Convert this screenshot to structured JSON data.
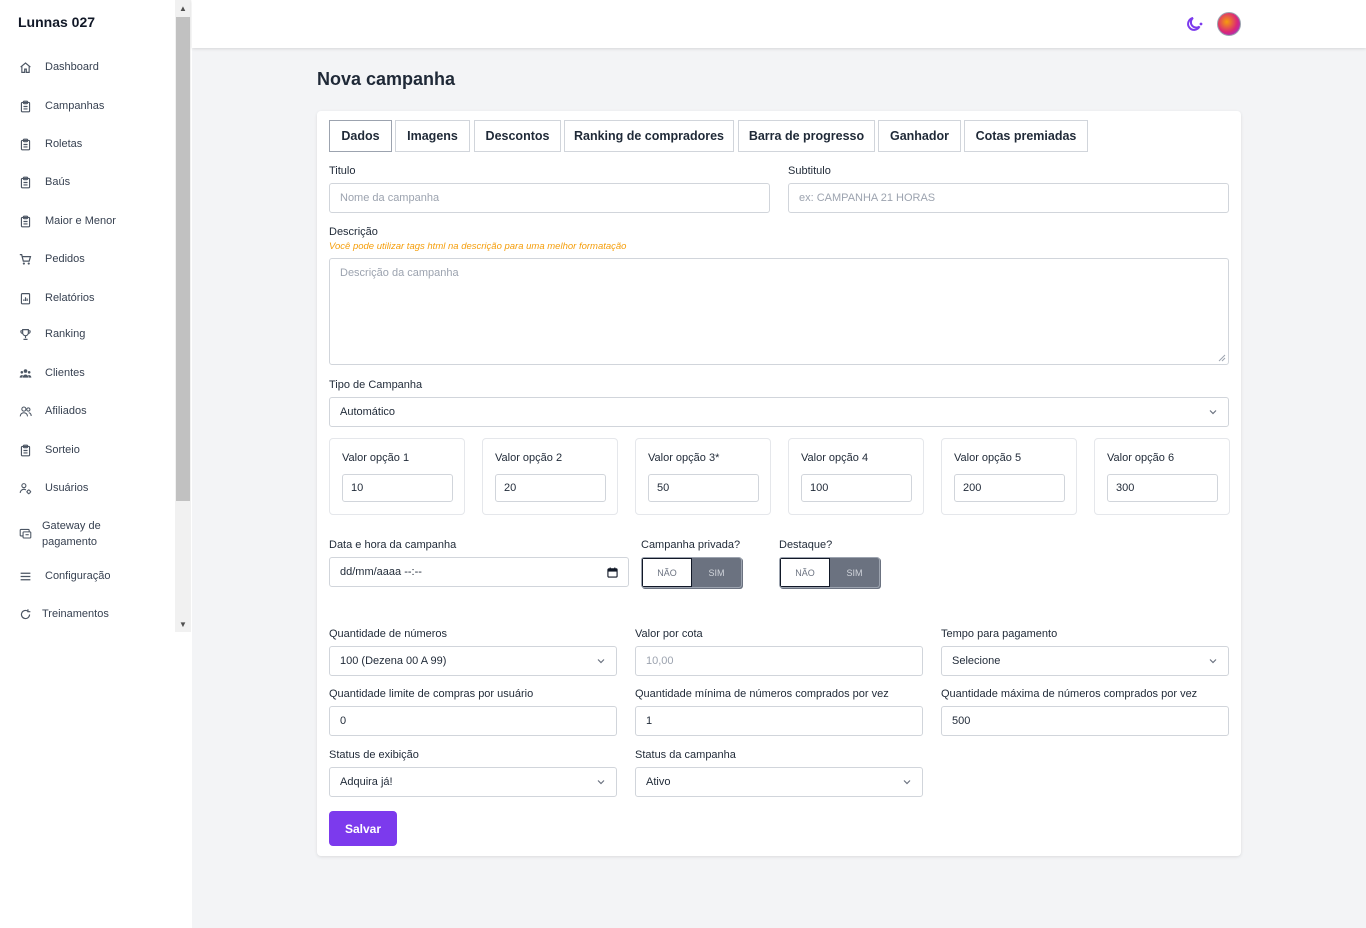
{
  "sidebar": {
    "brand": "Lunnas 027",
    "items": [
      {
        "label": "Dashboard",
        "icon": "home-icon"
      },
      {
        "label": "Campanhas",
        "icon": "clipboard-icon"
      },
      {
        "label": "Roletas",
        "icon": "clipboard-icon"
      },
      {
        "label": "Baús",
        "icon": "clipboard-icon"
      },
      {
        "label": "Maior e Menor",
        "icon": "clipboard-icon"
      },
      {
        "label": "Pedidos",
        "icon": "cart-icon"
      },
      {
        "label": "Relatórios",
        "icon": "report-icon"
      },
      {
        "label": "Ranking",
        "icon": "trophy-icon"
      },
      {
        "label": "Clientes",
        "icon": "users-group-icon"
      },
      {
        "label": "Afiliados",
        "icon": "users-icon"
      },
      {
        "label": "Sorteio",
        "icon": "clipboard-icon"
      },
      {
        "label": "Usuários",
        "icon": "user-gear-icon"
      },
      {
        "label": "Gateway de pagamento",
        "icon": "payment-icon"
      },
      {
        "label": "Configuração",
        "icon": "menu-icon"
      },
      {
        "label": "Treinamentos",
        "icon": "refresh-icon"
      }
    ]
  },
  "header": {
    "theme_icon": "moon-icon",
    "avatar": "avatar"
  },
  "main": {
    "title": "Nova campanha",
    "tabs": [
      "Dados",
      "Imagens",
      "Descontos",
      "Ranking de compradores",
      "Barra de progresso",
      "Ganhador",
      "Cotas premiadas"
    ],
    "active_tab": "Dados",
    "form": {
      "titulo": {
        "label": "Titulo",
        "placeholder": "Nome da campanha"
      },
      "subtitulo": {
        "label": "Subtitulo",
        "placeholder": "ex: CAMPANHA 21 HORAS"
      },
      "descricao": {
        "label": "Descrição",
        "hint": "Você pode utilizar tags html na descrição para uma melhor formatação",
        "placeholder": "Descrição da campanha"
      },
      "tipo": {
        "label": "Tipo de Campanha",
        "value": "Automático"
      },
      "opcoes": [
        {
          "label": "Valor opção 1",
          "value": "10"
        },
        {
          "label": "Valor opção 2",
          "value": "20"
        },
        {
          "label": "Valor opção 3*",
          "value": "50"
        },
        {
          "label": "Valor opção 4",
          "value": "100"
        },
        {
          "label": "Valor opção 5",
          "value": "200"
        },
        {
          "label": "Valor opção 6",
          "value": "300"
        }
      ],
      "data_hora": {
        "label": "Data e hora da campanha",
        "placeholder": "dd/mm/aaaa --:--"
      },
      "privada": {
        "label": "Campanha privada?",
        "no": "NÃO",
        "yes": "SIM"
      },
      "destaque": {
        "label": "Destaque?",
        "no": "NÃO",
        "yes": "SIM"
      },
      "quantidade_numeros": {
        "label": "Quantidade de números",
        "value": "100 (Dezena 00 A 99)"
      },
      "valor_cota": {
        "label": "Valor por cota",
        "placeholder": "10,00"
      },
      "tempo_pagamento": {
        "label": "Tempo para pagamento",
        "value": "Selecione"
      },
      "limite_compras": {
        "label": "Quantidade limite de compras por usuário",
        "value": "0"
      },
      "minimo_numeros": {
        "label": "Quantidade mínima de números comprados por vez",
        "value": "1"
      },
      "maximo_numeros": {
        "label": "Quantidade máxima de números comprados por vez",
        "value": "500"
      },
      "status_exibicao": {
        "label": "Status de exibição",
        "value": "Adquira já!"
      },
      "status_campanha": {
        "label": "Status da campanha",
        "value": "Ativo"
      },
      "save_label": "Salvar"
    }
  },
  "colors": {
    "accent": "#7c3aed",
    "hint": "#f59e0b"
  }
}
